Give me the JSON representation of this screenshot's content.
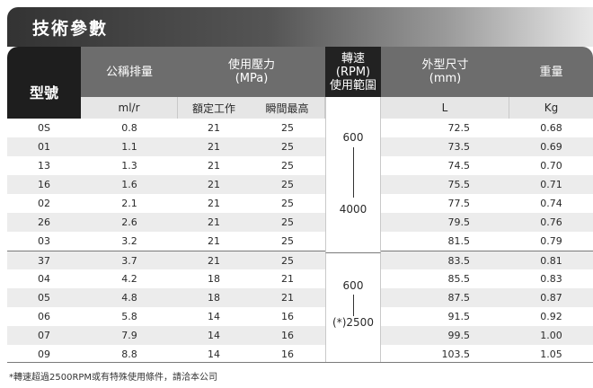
{
  "title": "技術參數",
  "headers": {
    "model": "型號",
    "displacement": "公稱排量",
    "pressure_line1": "使用壓力",
    "pressure_line2": "(MPa)",
    "rpm_line1": "轉速",
    "rpm_line2": "(RPM)",
    "rpm_line3": "使用範圍",
    "size_line1": "外型尺寸",
    "size_line2": "(mm)",
    "weight": "重量"
  },
  "subheaders": {
    "displacement_unit": "ml/r",
    "rated": "額定工作",
    "peak": "瞬間最高",
    "size_unit": "L",
    "weight_unit": "Kg"
  },
  "rows": [
    {
      "model": "0S",
      "disp": "0.8",
      "rated": "21",
      "peak": "25",
      "L": "72.5",
      "kg": "0.68"
    },
    {
      "model": "01",
      "disp": "1.1",
      "rated": "21",
      "peak": "25",
      "L": "73.5",
      "kg": "0.69"
    },
    {
      "model": "13",
      "disp": "1.3",
      "rated": "21",
      "peak": "25",
      "L": "74.5",
      "kg": "0.70"
    },
    {
      "model": "16",
      "disp": "1.6",
      "rated": "21",
      "peak": "25",
      "L": "75.5",
      "kg": "0.71"
    },
    {
      "model": "02",
      "disp": "2.1",
      "rated": "21",
      "peak": "25",
      "L": "77.5",
      "kg": "0.74"
    },
    {
      "model": "26",
      "disp": "2.6",
      "rated": "21",
      "peak": "25",
      "L": "79.5",
      "kg": "0.76"
    },
    {
      "model": "03",
      "disp": "3.2",
      "rated": "21",
      "peak": "25",
      "L": "81.5",
      "kg": "0.79"
    },
    {
      "model": "37",
      "disp": "3.7",
      "rated": "21",
      "peak": "25",
      "L": "83.5",
      "kg": "0.81"
    },
    {
      "model": "04",
      "disp": "4.2",
      "rated": "18",
      "peak": "21",
      "L": "85.5",
      "kg": "0.83"
    },
    {
      "model": "05",
      "disp": "4.8",
      "rated": "18",
      "peak": "21",
      "L": "87.5",
      "kg": "0.87"
    },
    {
      "model": "06",
      "disp": "5.8",
      "rated": "14",
      "peak": "16",
      "L": "91.5",
      "kg": "0.92"
    },
    {
      "model": "07",
      "disp": "7.9",
      "rated": "14",
      "peak": "16",
      "L": "99.5",
      "kg": "1.00"
    },
    {
      "model": "09",
      "disp": "8.8",
      "rated": "14",
      "peak": "16",
      "L": "103.5",
      "kg": "1.05"
    }
  ],
  "rpm_groups": [
    {
      "min": "600",
      "max": "4000"
    },
    {
      "min": "600",
      "max": "(*)2500"
    }
  ],
  "footnote": "*轉速超過2500RPM或有特殊使用條件，請洽本公司"
}
